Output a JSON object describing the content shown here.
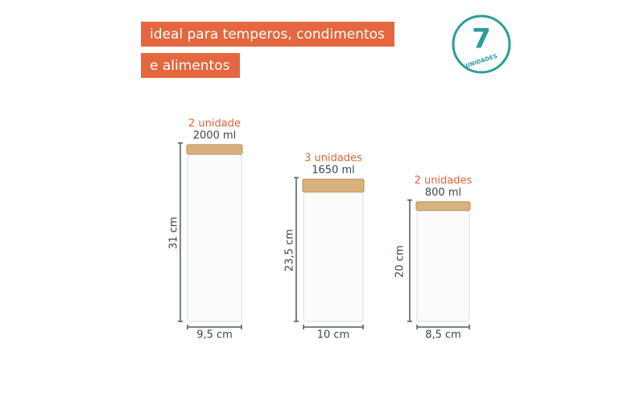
{
  "header": {
    "lines": [
      "ideal para temperos, condimentos",
      "e alimentos"
    ]
  },
  "badge": {
    "number": "7",
    "label": "UNIDADES"
  },
  "jars": [
    {
      "quantity": "2 unidade",
      "volume": "2000 ml",
      "height": "31 cm",
      "width": "9,5 cm"
    },
    {
      "quantity": "3 unidades",
      "volume": "1650 ml",
      "height": "23,5 cm",
      "width": "10 cm"
    },
    {
      "quantity": "2 unidades",
      "volume": "800 ml",
      "height": "20 cm",
      "width": "8,5 cm"
    }
  ]
}
